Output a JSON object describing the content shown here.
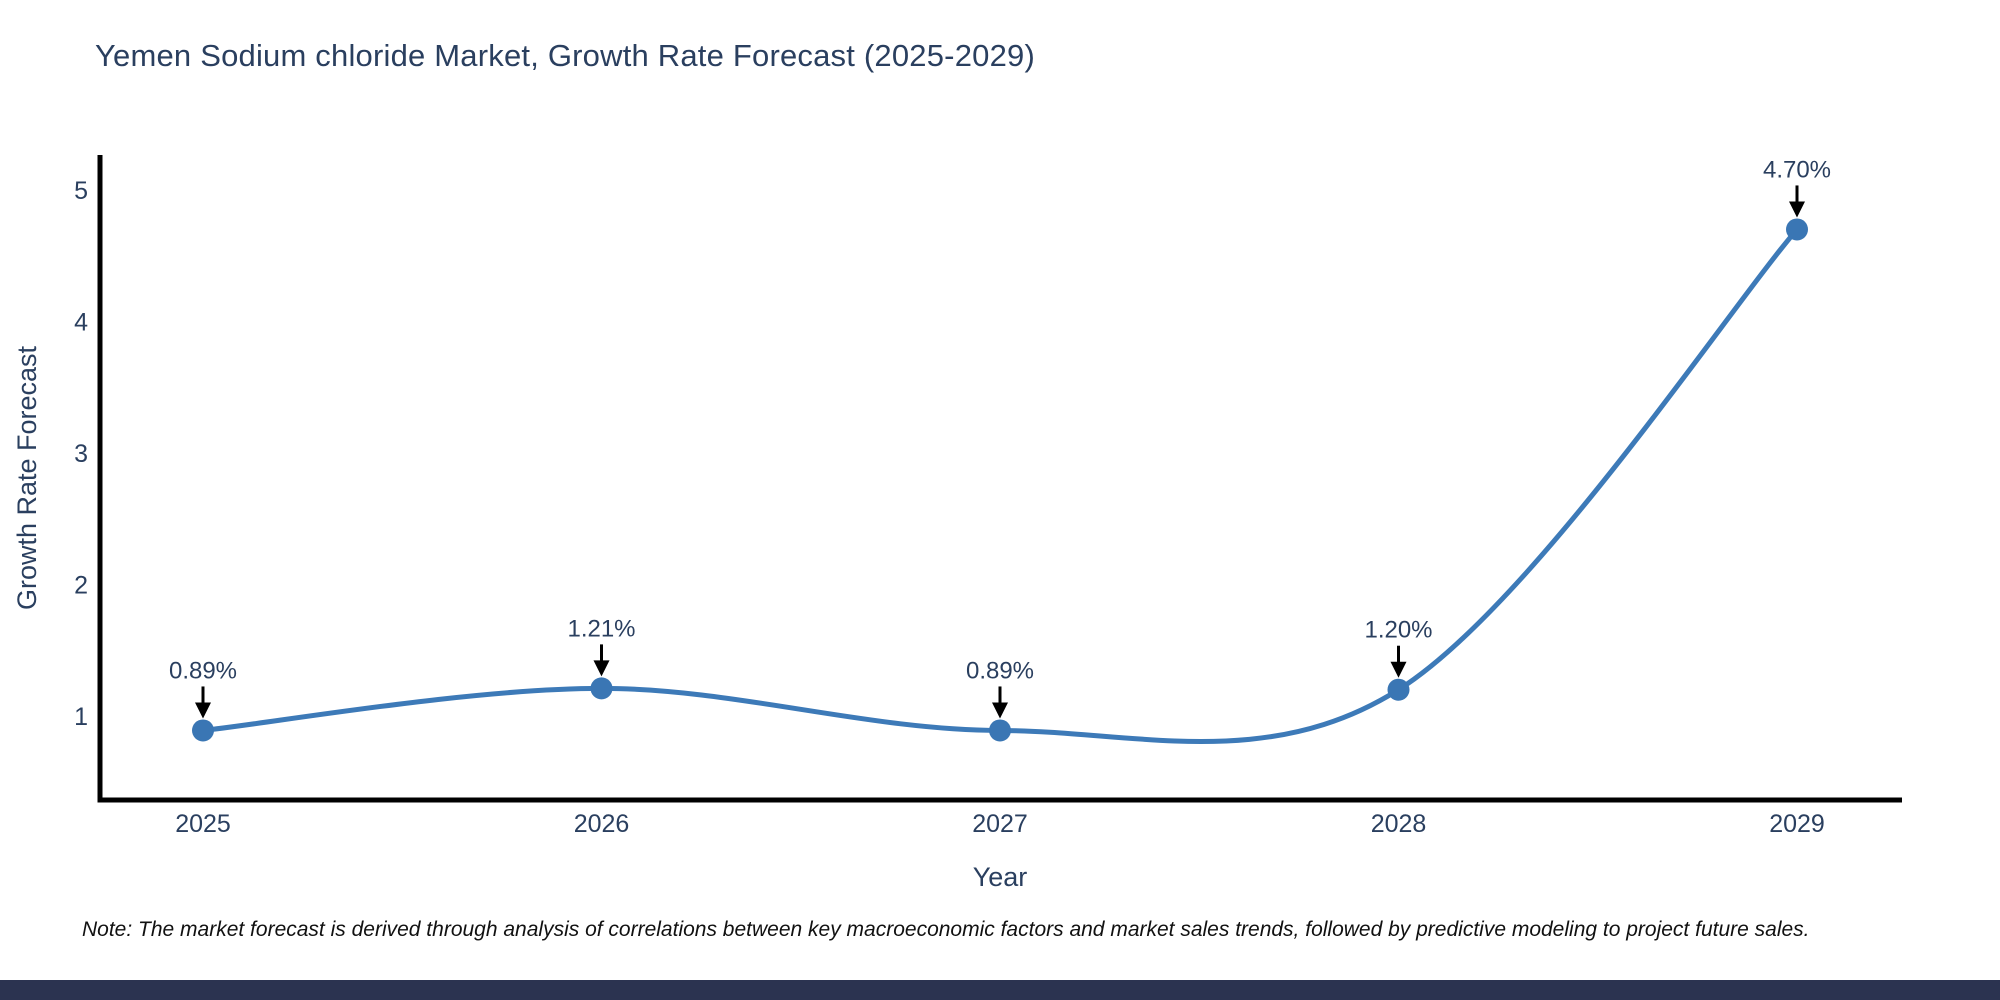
{
  "title": "Yemen Sodium chloride Market, Growth Rate Forecast (2025-2029)",
  "note": "Note: The market forecast is derived through analysis of correlations between key macroeconomic factors and market sales trends, followed by predictive modeling to project future sales.",
  "colors": {
    "title_text": "#2a3f5f",
    "line": "#3d7ab8",
    "marker": "#3a76b4",
    "axis_line": "#000000",
    "annotation_arrow": "#000000",
    "note_text": "#111111",
    "footer_bar": "#2b3350",
    "background": "#ffffff"
  },
  "chart_data": {
    "type": "line",
    "title": "Yemen Sodium chloride Market, Growth Rate Forecast (2025-2029)",
    "x": [
      "2025",
      "2026",
      "2027",
      "2028",
      "2029"
    ],
    "values": [
      0.89,
      1.21,
      0.89,
      1.2,
      4.7
    ],
    "point_labels": [
      "0.89%",
      "1.21%",
      "0.89%",
      "1.20%",
      "4.70%"
    ],
    "xlabel": "Year",
    "ylabel": "Growth Rate Forecast",
    "yticks": [
      1,
      2,
      3,
      4,
      5
    ],
    "ylim": [
      0.35,
      5.35
    ],
    "line_shape": "spline",
    "markers": true,
    "grid": false,
    "legend": "none"
  }
}
